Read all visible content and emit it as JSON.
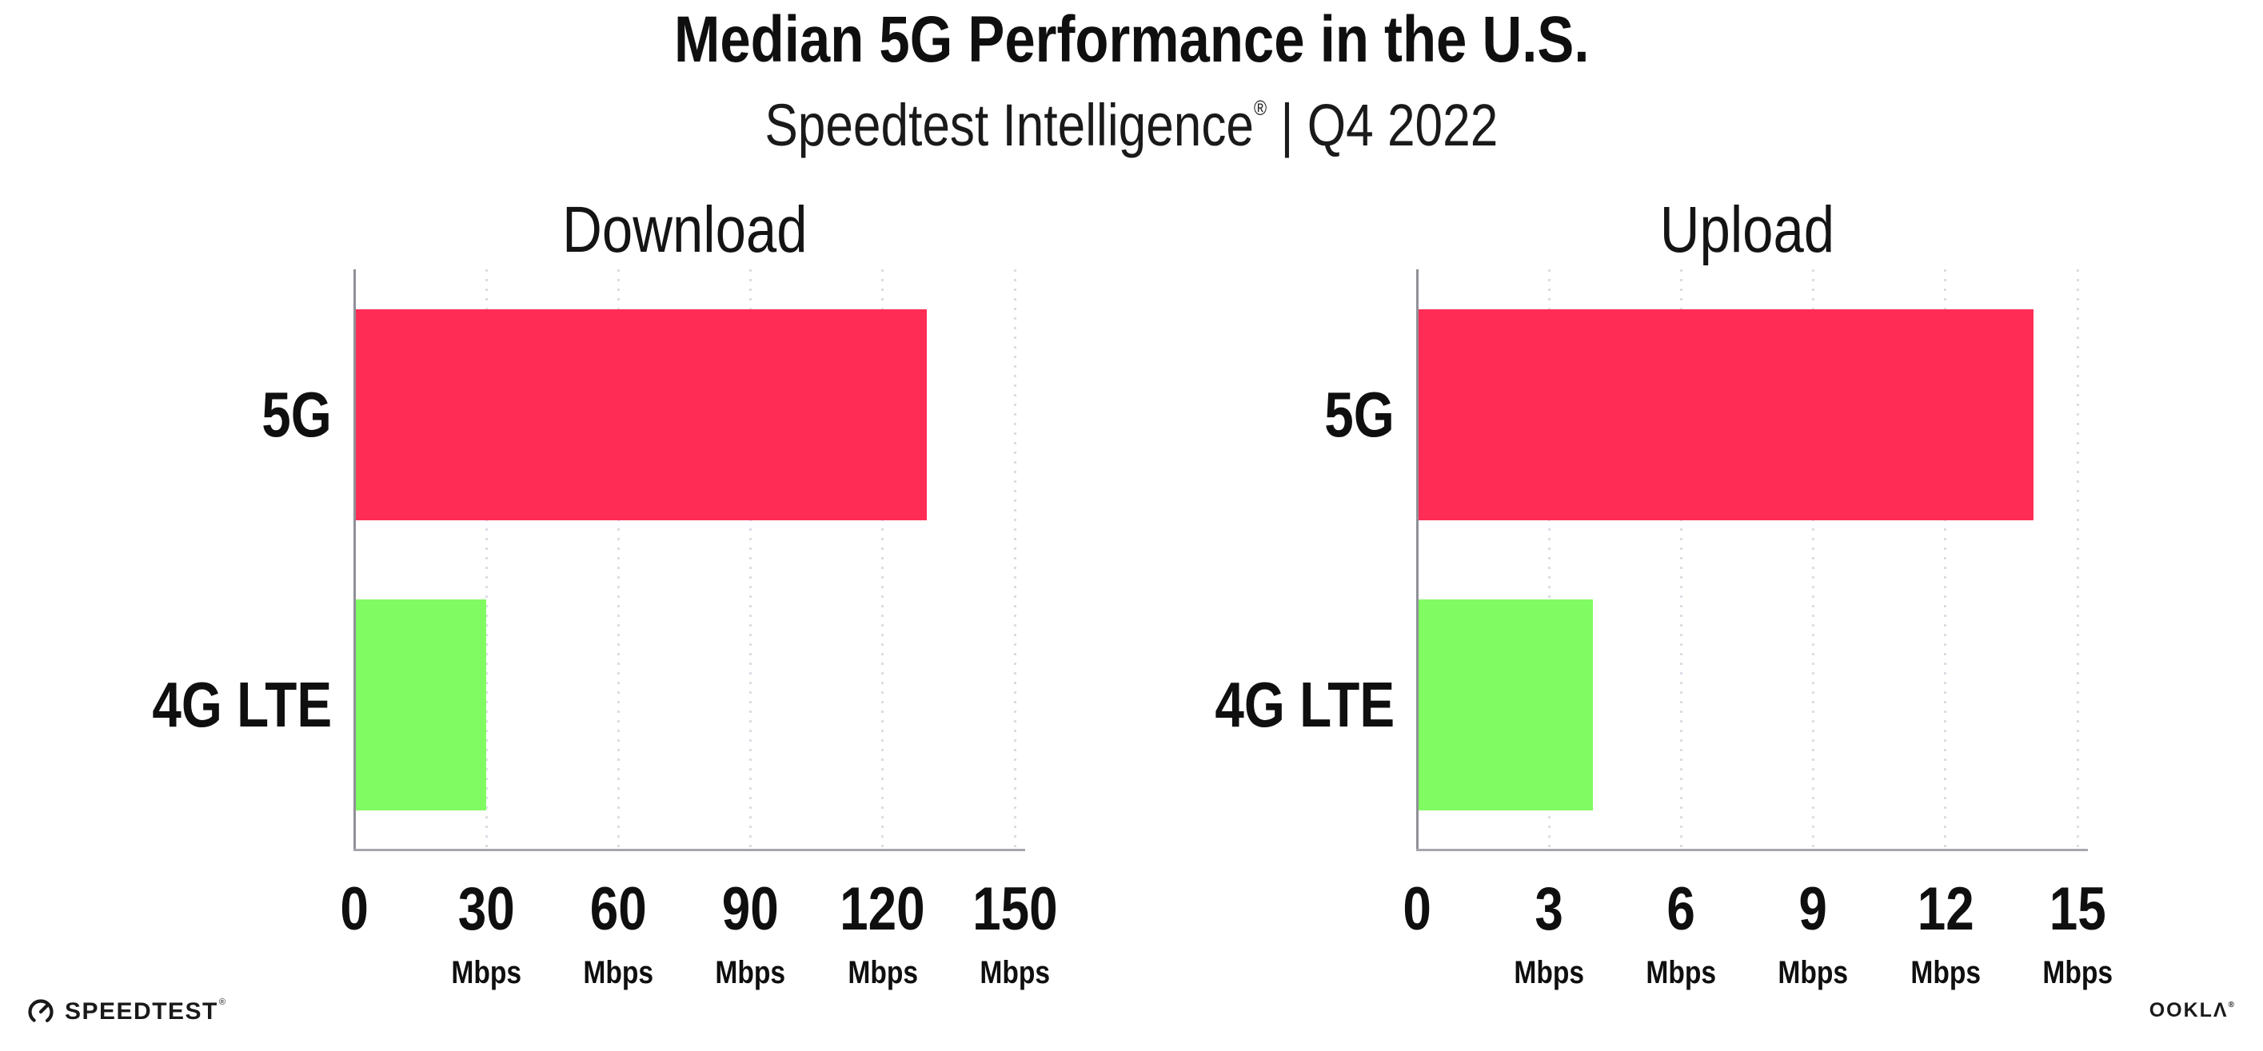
{
  "header": {
    "title": "Median 5G Performance in the U.S.",
    "subtitle_brand": "Speedtest Intelligence",
    "subtitle_registered": "®",
    "subtitle_rest": " | Q4 2022"
  },
  "chart_data": [
    {
      "type": "bar",
      "orientation": "horizontal",
      "title": "Download",
      "categories": [
        "5G",
        "4G LTE"
      ],
      "values": [
        130,
        30
      ],
      "unit": "Mbps",
      "xlim": [
        0,
        150
      ],
      "xticks": [
        0,
        30,
        60,
        90,
        120,
        150
      ],
      "tick_unit_label": "Mbps",
      "grid": "dotted-vertical",
      "legend": "none",
      "bar_colors": [
        "#FF2D55",
        "#80FB62"
      ]
    },
    {
      "type": "bar",
      "orientation": "horizontal",
      "title": "Upload",
      "categories": [
        "5G",
        "4G LTE"
      ],
      "values": [
        14,
        4
      ],
      "unit": "Mbps",
      "xlim": [
        0,
        15
      ],
      "xticks": [
        0,
        3,
        6,
        9,
        12,
        15
      ],
      "tick_unit_label": "Mbps",
      "grid": "dotted-vertical",
      "legend": "none",
      "bar_colors": [
        "#FF2D55",
        "#80FB62"
      ]
    }
  ],
  "footer": {
    "speedtest_label": "SPEEDTEST",
    "speedtest_mark": "®",
    "ookla_label": "OOKLΛ",
    "ookla_mark": "®"
  },
  "colors": {
    "bar_5g": "#FF2D55",
    "bar_4g_lte": "#80FB62",
    "axis_y": "#8F9098",
    "axis_x": "#A6A6AE",
    "gridline": "#DCDCE6",
    "text": "#111111"
  }
}
